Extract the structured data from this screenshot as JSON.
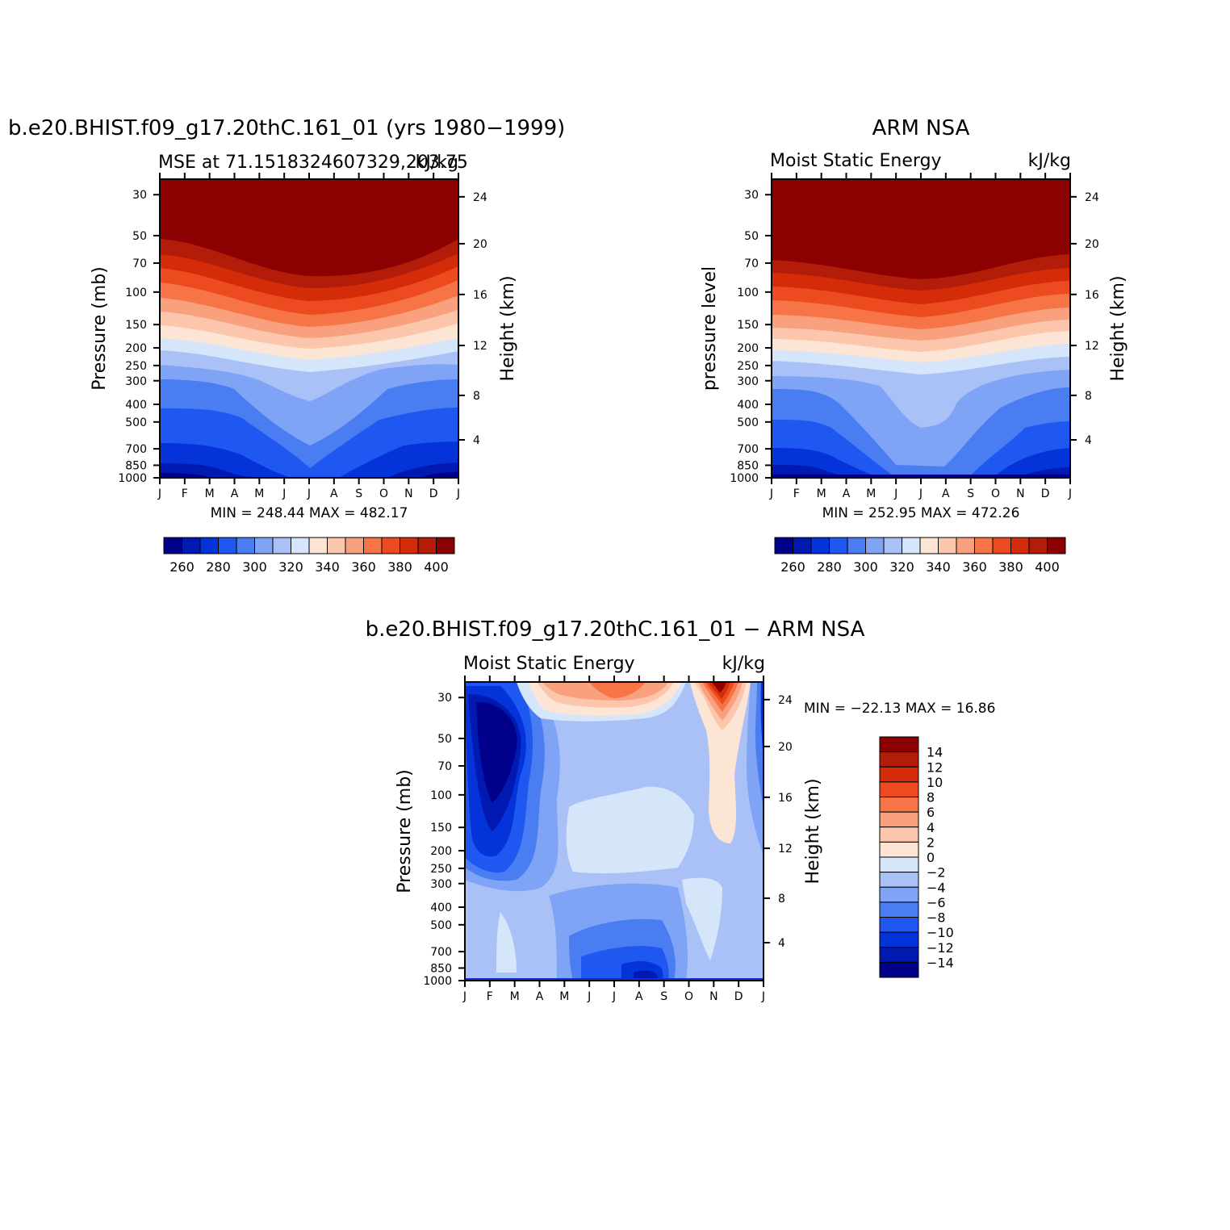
{
  "colors": {
    "abs_palette": [
      "#00008b",
      "#0019b0",
      "#0433d9",
      "#1f58f0",
      "#4a7cf2",
      "#7fa3f5",
      "#a9c1f7",
      "#d5e5fa",
      "#fde5d5",
      "#fbc6ac",
      "#f9a07f",
      "#f77447",
      "#ec4a1f",
      "#d42b08",
      "#b21c08",
      "#8b0000"
    ],
    "diff_palette": [
      "#00008b",
      "#0019b0",
      "#0433d9",
      "#1f58f0",
      "#4a7cf2",
      "#7fa3f5",
      "#a9c1f7",
      "#d5e5fa",
      "#fde5d5",
      "#fbc6ac",
      "#f9a07f",
      "#f77447",
      "#ec4a1f",
      "#d42b08",
      "#b21c08",
      "#8b0000"
    ]
  },
  "chart_data": [
    {
      "type": "heatmap",
      "id": "model",
      "title": "b.e20.BHIST.f09_g17.20thC.161_01 (yrs 1980−1999)",
      "subtitle_left": "MSE at 71.1518324607329,203.75",
      "subtitle_right": "kJ/kg",
      "ylabel": "Pressure (mb)",
      "ylabel_right": "Height (km)",
      "months": [
        "J",
        "F",
        "M",
        "A",
        "M",
        "J",
        "J",
        "A",
        "S",
        "O",
        "N",
        "D",
        "J"
      ],
      "pressure_ticks": [
        "30",
        "50",
        "70",
        "100",
        "150",
        "200",
        "250",
        "300",
        "400",
        "500",
        "700",
        "850",
        "1000"
      ],
      "height_ticks": [
        "24",
        "20",
        "16",
        "12",
        "8",
        "4"
      ],
      "min_max": "MIN = 248.44 MAX = 482.17",
      "colorbar_labels": [
        "260",
        "280",
        "300",
        "320",
        "340",
        "360",
        "380",
        "400"
      ],
      "levels": [
        255,
        260,
        265,
        270,
        275,
        280,
        285,
        290,
        295,
        300,
        305,
        310,
        315,
        320,
        325,
        330,
        335,
        340,
        345,
        350,
        355,
        360,
        365,
        370,
        375,
        380,
        385,
        390,
        395,
        400
      ]
    },
    {
      "type": "heatmap",
      "id": "obs",
      "title": "ARM NSA",
      "subtitle_left": "Moist Static Energy",
      "subtitle_right": "kJ/kg",
      "ylabel": "pressure level",
      "ylabel_right": "Height (km)",
      "months": [
        "J",
        "F",
        "M",
        "A",
        "M",
        "J",
        "J",
        "A",
        "S",
        "O",
        "N",
        "D",
        "J"
      ],
      "pressure_ticks": [
        "30",
        "50",
        "70",
        "100",
        "150",
        "200",
        "250",
        "300",
        "400",
        "500",
        "700",
        "850",
        "1000"
      ],
      "height_ticks": [
        "24",
        "20",
        "16",
        "12",
        "8",
        "4"
      ],
      "min_max": "MIN = 252.95 MAX = 472.26",
      "colorbar_labels": [
        "260",
        "280",
        "300",
        "320",
        "340",
        "360",
        "380",
        "400"
      ]
    },
    {
      "type": "heatmap",
      "id": "diff",
      "title": "b.e20.BHIST.f09_g17.20thC.161_01 − ARM NSA",
      "subtitle_left": "Moist Static Energy",
      "subtitle_right": "kJ/kg",
      "ylabel": "Pressure (mb)",
      "ylabel_right": "Height (km)",
      "months": [
        "J",
        "F",
        "M",
        "A",
        "M",
        "J",
        "J",
        "A",
        "S",
        "O",
        "N",
        "D",
        "J"
      ],
      "pressure_ticks": [
        "30",
        "50",
        "70",
        "100",
        "150",
        "200",
        "250",
        "300",
        "400",
        "500",
        "700",
        "850",
        "1000"
      ],
      "height_ticks": [
        "24",
        "20",
        "16",
        "12",
        "8",
        "4"
      ],
      "min_max": "MIN = −22.13 MAX = 16.86",
      "colorbar_labels": [
        "14",
        "12",
        "10",
        "8",
        "6",
        "4",
        "2",
        "0",
        "−2",
        "−4",
        "−6",
        "−8",
        "−10",
        "−12",
        "−14"
      ]
    }
  ]
}
